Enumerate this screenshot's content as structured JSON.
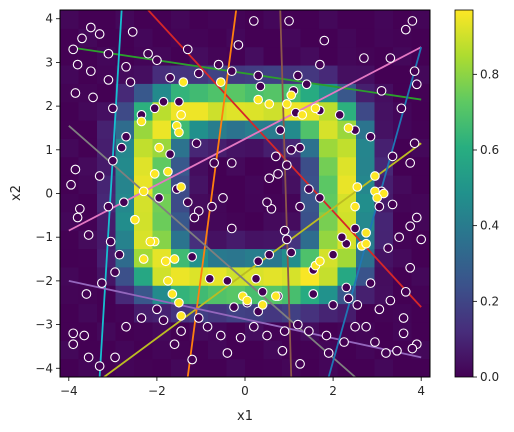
{
  "chart_data": {
    "type": "heatmap",
    "xlabel": "x1",
    "ylabel": "x2",
    "xlim": [
      -4.2,
      4.2
    ],
    "ylim": [
      -4.2,
      4.2
    ],
    "x_ticks": [
      -4,
      -2,
      0,
      2,
      4
    ],
    "y_ticks": [
      -4,
      -3,
      -2,
      -1,
      0,
      1,
      2,
      3,
      4
    ],
    "x_tick_labels": [
      "−4",
      "−2",
      "0",
      "2",
      "4"
    ],
    "y_tick_labels": [
      "−4",
      "−3",
      "−2",
      "−1",
      "0",
      "1",
      "2",
      "3",
      "4"
    ],
    "colorbar": {
      "colormap": "viridis",
      "range": [
        0.0,
        0.97
      ],
      "ticks": [
        0.0,
        0.2,
        0.4,
        0.6,
        0.8
      ],
      "tick_labels": [
        "0.0",
        "0.2",
        "0.4",
        "0.6",
        "0.8"
      ]
    },
    "heatmap_grid": {
      "description": "probability over x1,x2 grid, high on a ring-like band",
      "x_range": [
        -4.2,
        4.2
      ],
      "y_range": [
        -4.2,
        4.2
      ],
      "cells": 20
    },
    "grid": false,
    "lines": [
      {
        "color": "#2ca02c",
        "p1": [
          -4.0,
          3.35
        ],
        "p2": [
          4.0,
          2.15
        ]
      },
      {
        "color": "#d62728",
        "p1": [
          -2.2,
          4.2
        ],
        "p2": [
          4.0,
          -2.6
        ]
      },
      {
        "color": "#e377c2",
        "p1": [
          -4.0,
          -0.85
        ],
        "p2": [
          4.0,
          3.35
        ]
      },
      {
        "color": "#bcbd22",
        "p1": [
          -3.2,
          -4.2
        ],
        "p2": [
          4.0,
          1.15
        ]
      },
      {
        "color": "#8c564b",
        "p1": [
          0.8,
          4.2
        ],
        "p2": [
          1.05,
          -4.2
        ]
      },
      {
        "color": "#ff7f0e",
        "p1": [
          -1.3,
          -4.2
        ],
        "p2": [
          -0.2,
          4.2
        ]
      },
      {
        "color": "#17becf",
        "p1": [
          -2.8,
          4.2
        ],
        "p2": [
          -3.3,
          -4.2
        ]
      },
      {
        "color": "#7f7f7f",
        "p1": [
          -4.0,
          1.55
        ],
        "p2": [
          2.5,
          -4.2
        ]
      },
      {
        "color": "#9467bd",
        "p1": [
          -4.0,
          -2.0
        ],
        "p2": [
          4.0,
          -3.75
        ]
      },
      {
        "color": "#1f77b4",
        "p1": [
          1.9,
          -4.2
        ],
        "p2": [
          4.0,
          3.35
        ]
      }
    ],
    "points_class0": [
      [
        -3.9,
        3.3
      ],
      [
        -3.7,
        3.55
      ],
      [
        -3.5,
        3.8
      ],
      [
        -3.3,
        3.65
      ],
      [
        -3.1,
        3.2
      ],
      [
        -2.7,
        2.9
      ],
      [
        -2.55,
        3.7
      ],
      [
        -2.2,
        3.2
      ],
      [
        -2.0,
        3.05
      ],
      [
        -1.7,
        2.65
      ],
      [
        -1.3,
        3.3
      ],
      [
        -1.05,
        2.75
      ],
      [
        -0.6,
        2.95
      ],
      [
        -0.15,
        3.4
      ],
      [
        0.2,
        3.95
      ],
      [
        1.0,
        3.95
      ],
      [
        1.7,
        2.95
      ],
      [
        1.8,
        3.5
      ],
      [
        2.7,
        3.1
      ],
      [
        3.3,
        3.1
      ],
      [
        3.8,
        3.95
      ],
      [
        3.65,
        3.75
      ],
      [
        3.85,
        2.8
      ],
      [
        3.9,
        2.5
      ],
      [
        -3.8,
        2.95
      ],
      [
        -3.5,
        2.8
      ],
      [
        -3.1,
        2.6
      ],
      [
        -2.6,
        2.55
      ],
      [
        -3.85,
        2.3
      ],
      [
        -3.45,
        2.2
      ],
      [
        -3.0,
        1.95
      ],
      [
        -2.7,
        1.3
      ],
      [
        -2.35,
        1.8
      ],
      [
        -2.05,
        1.95
      ],
      [
        -1.85,
        2.1
      ],
      [
        -1.5,
        2.1
      ],
      [
        -1.1,
        1.15
      ],
      [
        -0.7,
        0.7
      ],
      [
        -0.3,
        0.7
      ],
      [
        0.8,
        1.45
      ],
      [
        1.05,
        1.0
      ],
      [
        1.25,
        1.05
      ],
      [
        0.7,
        0.85
      ],
      [
        0.95,
        0.65
      ],
      [
        1.45,
        0.1
      ],
      [
        1.7,
        -0.1
      ],
      [
        1.25,
        -0.3
      ],
      [
        0.6,
        -0.35
      ],
      [
        0.5,
        -0.2
      ],
      [
        -0.5,
        -0.1
      ],
      [
        -0.75,
        -0.3
      ],
      [
        -1.05,
        -0.4
      ],
      [
        -1.15,
        -0.55
      ],
      [
        -1.3,
        -0.2
      ],
      [
        -1.55,
        0.1
      ],
      [
        -1.7,
        0.9
      ],
      [
        -1.95,
        -0.1
      ],
      [
        2.15,
        1.8
      ],
      [
        2.5,
        1.45
      ],
      [
        2.85,
        1.3
      ],
      [
        3.1,
        2.35
      ],
      [
        3.55,
        1.95
      ],
      [
        3.85,
        1.15
      ],
      [
        3.75,
        0.7
      ],
      [
        3.35,
        0.85
      ],
      [
        3.1,
        0.05
      ],
      [
        3.05,
        -0.3
      ],
      [
        2.5,
        -0.8
      ],
      [
        2.3,
        -1.15
      ],
      [
        3.5,
        -1.0
      ],
      [
        3.25,
        -1.25
      ],
      [
        3.75,
        -0.75
      ],
      [
        3.9,
        -0.55
      ],
      [
        4.0,
        -1.05
      ],
      [
        3.75,
        -1.7
      ],
      [
        3.65,
        -2.25
      ],
      [
        3.3,
        -2.45
      ],
      [
        3.6,
        -2.85
      ],
      [
        3.6,
        -3.2
      ],
      [
        3.9,
        -3.45
      ],
      [
        3.8,
        -3.55
      ],
      [
        3.45,
        -3.6
      ],
      [
        3.2,
        -3.65
      ],
      [
        2.95,
        -3.4
      ],
      [
        2.75,
        -3.05
      ],
      [
        2.55,
        -2.55
      ],
      [
        1.85,
        -3.25
      ],
      [
        1.45,
        -3.15
      ],
      [
        1.2,
        -3.0
      ],
      [
        0.9,
        -3.15
      ],
      [
        0.75,
        -2.35
      ],
      [
        0.4,
        -2.25
      ],
      [
        0.3,
        -2.7
      ],
      [
        0.05,
        -2.5
      ],
      [
        -0.25,
        -2.6
      ],
      [
        -0.4,
        -2.0
      ],
      [
        -0.8,
        -1.95
      ],
      [
        -1.2,
        -1.45
      ],
      [
        -1.45,
        -3.15
      ],
      [
        -1.2,
        -3.8
      ],
      [
        -1.05,
        -2.85
      ],
      [
        -0.85,
        -3.05
      ],
      [
        -0.55,
        -3.25
      ],
      [
        -0.4,
        -3.65
      ],
      [
        -0.1,
        -3.3
      ],
      [
        0.2,
        -3.05
      ],
      [
        0.5,
        -3.25
      ],
      [
        0.85,
        -3.6
      ],
      [
        1.25,
        -3.9
      ],
      [
        1.9,
        -3.65
      ],
      [
        2.25,
        -3.4
      ],
      [
        2.5,
        -3.05
      ],
      [
        -1.6,
        -3.45
      ],
      [
        -1.85,
        -2.9
      ],
      [
        -2.0,
        -2.65
      ],
      [
        -2.35,
        -2.85
      ],
      [
        -2.7,
        -3.05
      ],
      [
        -2.95,
        -3.75
      ],
      [
        -3.3,
        -3.95
      ],
      [
        -3.55,
        -3.75
      ],
      [
        -3.9,
        -3.45
      ],
      [
        -3.9,
        -3.2
      ],
      [
        -3.65,
        -3.25
      ],
      [
        -3.6,
        -2.3
      ],
      [
        -3.25,
        -2.05
      ],
      [
        -2.95,
        -1.8
      ],
      [
        -2.85,
        -1.4
      ],
      [
        -3.05,
        -1.1
      ],
      [
        -3.55,
        -0.95
      ],
      [
        -3.8,
        -0.55
      ],
      [
        -3.75,
        -0.35
      ],
      [
        -3.95,
        0.2
      ],
      [
        -3.85,
        0.55
      ],
      [
        -3.3,
        0.4
      ],
      [
        -3.1,
        -0.3
      ],
      [
        -2.75,
        -0.2
      ],
      [
        -3.0,
        0.75
      ],
      [
        -2.8,
        1.05
      ],
      [
        1.1,
        2.35
      ],
      [
        1.2,
        2.7
      ],
      [
        1.4,
        2.5
      ],
      [
        1.15,
        1.85
      ],
      [
        1.7,
        1.9
      ],
      [
        0.35,
        2.45
      ],
      [
        0.3,
        2.7
      ],
      [
        -0.3,
        2.8
      ],
      [
        2.2,
        -1.0
      ],
      [
        3.35,
        -0.25
      ],
      [
        0.75,
        0.45
      ],
      [
        0.55,
        0.35
      ],
      [
        0.95,
        -1.05
      ],
      [
        1.05,
        -1.35
      ],
      [
        0.55,
        -1.4
      ],
      [
        0.3,
        -1.55
      ],
      [
        0.25,
        -1.95
      ],
      [
        -0.3,
        -0.8
      ],
      [
        0.9,
        -0.85
      ],
      [
        1.55,
        -1.75
      ],
      [
        2.0,
        -1.4
      ],
      [
        2.85,
        -2.05
      ],
      [
        3.05,
        -2.65
      ],
      [
        2.3,
        -2.15
      ],
      [
        1.55,
        -2.3
      ],
      [
        2.0,
        -2.55
      ],
      [
        2.35,
        -2.4
      ]
    ],
    "points_class1": [
      [
        -2.35,
        1.65
      ],
      [
        -1.4,
        2.55
      ],
      [
        -0.55,
        2.55
      ],
      [
        0.3,
        2.15
      ],
      [
        0.55,
        2.05
      ],
      [
        0.95,
        2.05
      ],
      [
        1.05,
        2.25
      ],
      [
        1.6,
        1.95
      ],
      [
        1.3,
        1.8
      ],
      [
        2.35,
        1.5
      ],
      [
        -1.45,
        1.8
      ],
      [
        -1.55,
        1.55
      ],
      [
        -1.95,
        1.05
      ],
      [
        -2.05,
        0.45
      ],
      [
        -1.75,
        0.5
      ],
      [
        -1.45,
        0.15
      ],
      [
        -2.3,
        0.05
      ],
      [
        -2.5,
        -0.6
      ],
      [
        -2.05,
        -1.1
      ],
      [
        -2.15,
        -1.1
      ],
      [
        -2.3,
        -1.5
      ],
      [
        -1.8,
        -1.55
      ],
      [
        -1.6,
        -1.5
      ],
      [
        -1.75,
        -2.0
      ],
      [
        -1.65,
        -2.3
      ],
      [
        -1.5,
        -2.5
      ],
      [
        -1.45,
        -2.8
      ],
      [
        -0.05,
        -2.35
      ],
      [
        0.05,
        -2.45
      ],
      [
        0.4,
        -2.55
      ],
      [
        0.7,
        -2.35
      ],
      [
        1.6,
        -1.65
      ],
      [
        1.7,
        -1.55
      ],
      [
        2.65,
        -1.2
      ],
      [
        2.75,
        -1.15
      ],
      [
        2.75,
        -0.9
      ],
      [
        2.95,
        0.05
      ],
      [
        3.15,
        0.0
      ],
      [
        3.0,
        -0.1
      ],
      [
        2.95,
        0.4
      ],
      [
        2.55,
        0.15
      ],
      [
        2.5,
        -0.3
      ],
      [
        -1.5,
        1.4
      ]
    ]
  }
}
